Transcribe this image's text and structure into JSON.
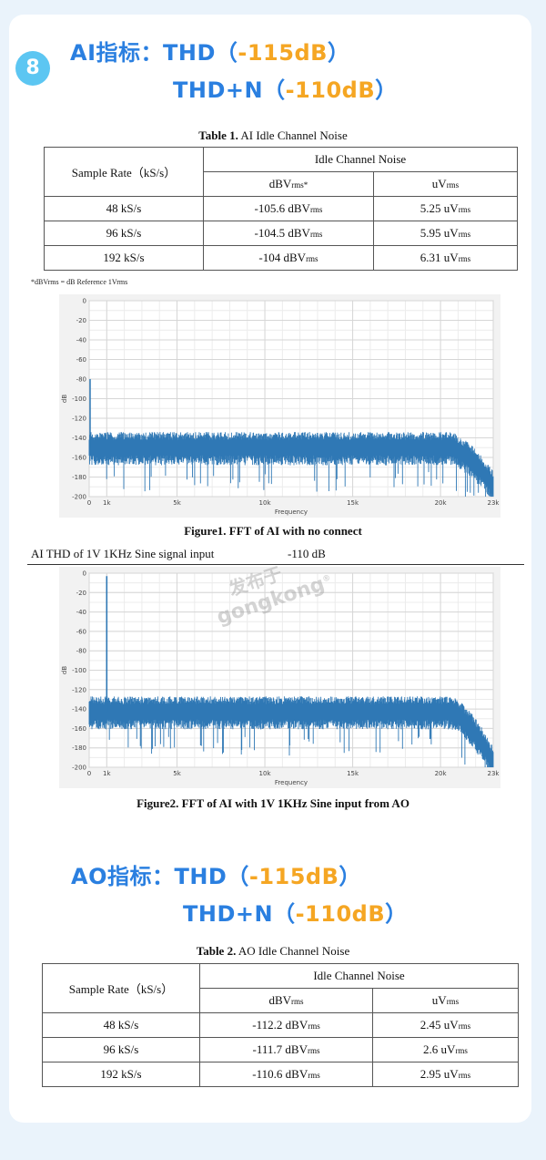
{
  "section": {
    "badge": "8",
    "ai_heading_prefix": "AI指标：THD（",
    "ai_thd_value": "-115dB",
    "ai_close": "）",
    "ai_thdn_prefix": "THD+N（",
    "ai_thdn_value": "-110dB",
    "ai_close2": "）",
    "ao_heading_prefix": "AO指标：THD（",
    "ao_thd_value": "-115dB",
    "ao_close": "）",
    "ao_thdn_prefix": "THD+N（",
    "ao_thdn_value": "-110dB",
    "ao_close2": "）"
  },
  "table1": {
    "caption_bold": "Table 1.",
    "caption_rest": " AI Idle Channel Noise",
    "col_sample": "Sample Rate（kS/s）",
    "col_group": "Idle Channel Noise",
    "col_dbv": "dBV",
    "col_dbv_sub": "rms*",
    "col_uv": "uV",
    "col_uv_sub": "rms",
    "rows": [
      {
        "rate": "48 kS/s",
        "dbv": "-105.6 dBV",
        "dbv_sub": "rms",
        "uv": "5.25 uV",
        "uv_sub": "rms"
      },
      {
        "rate": "96 kS/s",
        "dbv": "-104.5 dBV",
        "dbv_sub": "rms",
        "uv": "5.95 uV",
        "uv_sub": "rms"
      },
      {
        "rate": "192 kS/s",
        "dbv": "-104 dBV",
        "dbv_sub": "rms",
        "uv": "6.31 uV",
        "uv_sub": "rms"
      }
    ],
    "footnote": "*dBVrms = dB Reference 1Vrms"
  },
  "figure1": {
    "caption": "Figure1. FFT of AI with no connect"
  },
  "thd_line": {
    "label": "AI THD of 1V 1KHz Sine signal input",
    "value": "-110 dB"
  },
  "figure2": {
    "caption": "Figure2. FFT of AI with 1V 1KHz Sine input from AO"
  },
  "watermark": {
    "cn": "发布于",
    "en": "gongkong",
    "reg": "®"
  },
  "table2": {
    "caption_bold": "Table 2.",
    "caption_rest": " AO Idle Channel Noise",
    "col_sample": "Sample Rate（kS/s）",
    "col_group": "Idle Channel Noise",
    "col_dbv": "dBV",
    "col_dbv_sub": "rms",
    "col_uv": "uV",
    "col_uv_sub": "rms",
    "rows": [
      {
        "rate": "48 kS/s",
        "dbv": "-112.2 dBV",
        "dbv_sub": "rms",
        "uv": "2.45 uV",
        "uv_sub": "rms"
      },
      {
        "rate": "96 kS/s",
        "dbv": "-111.7 dBV",
        "dbv_sub": "rms",
        "uv": "2.6 uV",
        "uv_sub": "rms"
      },
      {
        "rate": "192 kS/s",
        "dbv": "-110.6 dBV",
        "dbv_sub": "rms",
        "uv": "2.95 uV",
        "uv_sub": "rms"
      }
    ]
  },
  "chart_data": [
    {
      "type": "line",
      "xlabel": "Frequency",
      "ylabel": "dB",
      "xlim": [
        0,
        23000
      ],
      "ylim": [
        -200,
        0
      ],
      "xticks": [
        "0",
        "1k",
        "5k",
        "10k",
        "15k",
        "20k",
        "23k"
      ],
      "xtick_values": [
        0,
        1000,
        5000,
        10000,
        15000,
        20000,
        23000
      ],
      "yticks": [
        "0",
        "-20",
        "-40",
        "-60",
        "-80",
        "-100",
        "-120",
        "-140",
        "-160",
        "-180",
        "-200"
      ],
      "ytick_values": [
        0,
        -20,
        -40,
        -60,
        -80,
        -100,
        -120,
        -140,
        -160,
        -180,
        -200
      ],
      "grid": true,
      "series": [
        {
          "color": "#2f78b5",
          "noise_floor_db": -150,
          "dc_peak_db": -80,
          "rolloff_start_hz": 20500,
          "end_db": -190
        }
      ]
    },
    {
      "type": "line",
      "xlabel": "Frequency",
      "ylabel": "dB",
      "xlim": [
        0,
        23000
      ],
      "ylim": [
        -200,
        0
      ],
      "xticks": [
        "0",
        "1k",
        "5k",
        "10k",
        "15k",
        "20k",
        "23k"
      ],
      "xtick_values": [
        0,
        1000,
        5000,
        10000,
        15000,
        20000,
        23000
      ],
      "yticks": [
        "0",
        "-20",
        "-40",
        "-60",
        "-80",
        "-100",
        "-120",
        "-140",
        "-160",
        "-180",
        "-200"
      ],
      "ytick_values": [
        0,
        -20,
        -40,
        -60,
        -80,
        -100,
        -120,
        -140,
        -160,
        -180,
        -200
      ],
      "grid": true,
      "series": [
        {
          "color": "#2f78b5",
          "noise_floor_db": -143,
          "peak_hz": 1000,
          "peak_db": -3,
          "rolloff_start_hz": 20500,
          "end_db": -195
        }
      ]
    }
  ]
}
